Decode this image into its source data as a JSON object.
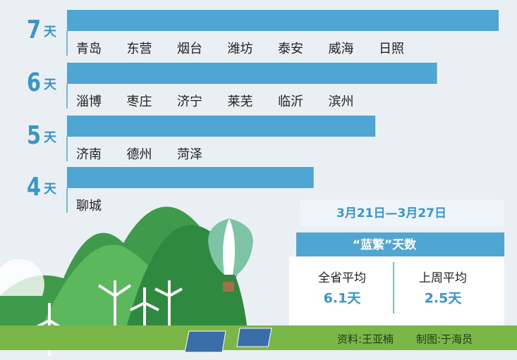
{
  "chart_data": {
    "type": "bar",
    "values": [
      7,
      6,
      5,
      4
    ],
    "unit": "天",
    "cities": [
      [
        "青岛",
        "东营",
        "烟台",
        "潍坊",
        "泰安",
        "威海",
        "日照"
      ],
      [
        "淄博",
        "枣庄",
        "济宁",
        "莱芜",
        "临沂",
        "滨州"
      ],
      [
        "济南",
        "德州",
        "菏泽"
      ],
      [
        "聊城"
      ]
    ],
    "color": "#4fa6d3",
    "xlim": [
      0,
      7
    ],
    "period": "3月21日—3月27日",
    "heading": "“蓝繁”天数",
    "summary": {
      "labels": [
        "全省平均",
        "上周平均"
      ],
      "values": [
        6.1,
        2.5
      ],
      "value_labels": [
        "6.1天",
        "2.5天"
      ]
    },
    "credits": [
      "资料:王亚楠",
      "制图:于海员"
    ]
  }
}
